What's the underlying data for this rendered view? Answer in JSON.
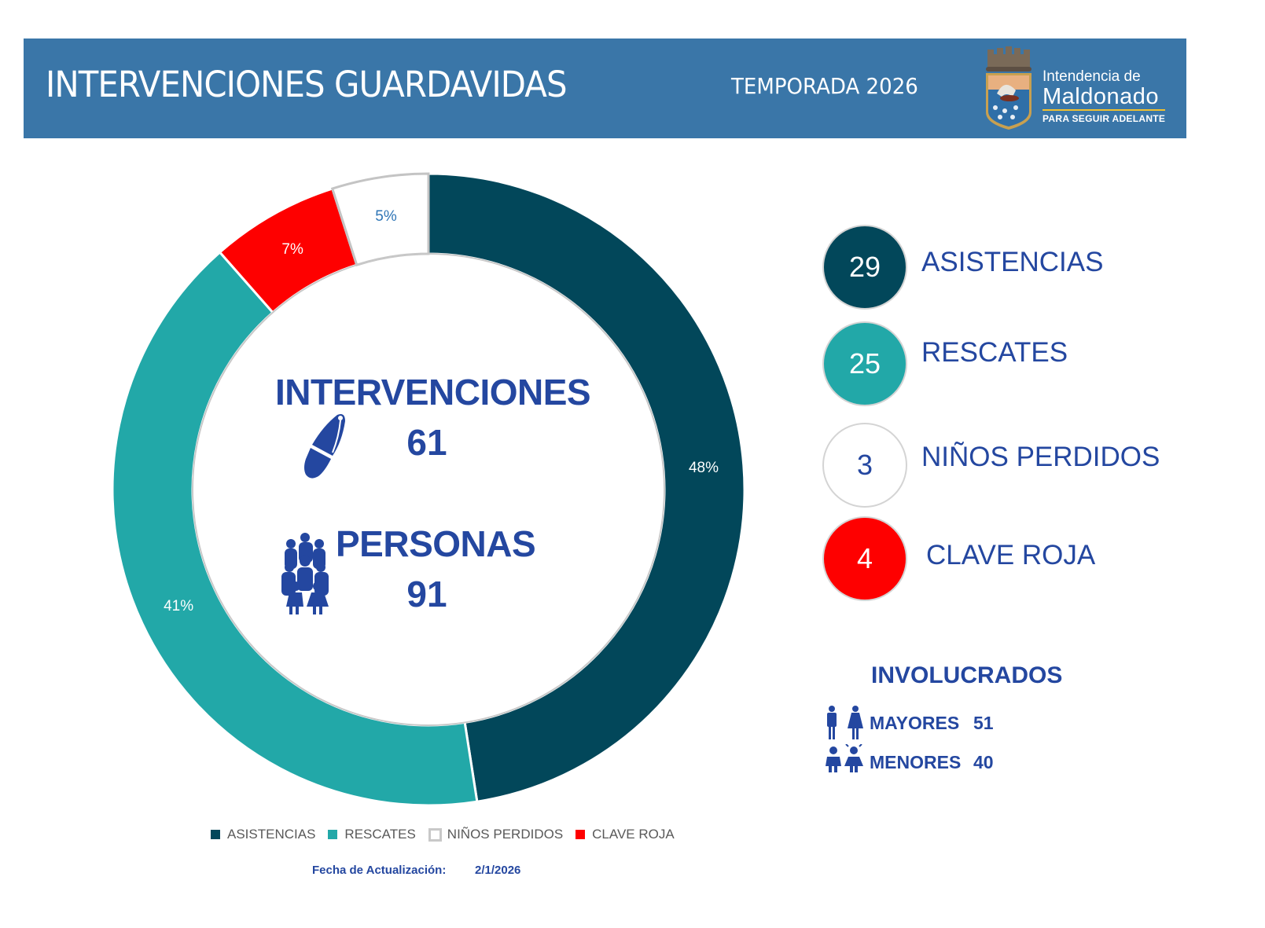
{
  "header": {
    "title": "INTERVENCIONES GUARDAVIDAS",
    "subtitle": "TEMPORADA 2026",
    "logo": {
      "line1": "Intendencia de",
      "line2": "Maldonado",
      "line3": "PARA SEGUIR ADELANTE",
      "icon": "coat-of-arms-icon"
    }
  },
  "colors": {
    "banner": "#3a76a8",
    "asistencias": "#02475a",
    "rescates": "#22a8a8",
    "ninos_perdidos": "#ffffff",
    "clave_roja": "#fe0000",
    "text_blue": "#2447a0"
  },
  "center": {
    "intervenciones_label": "INTERVENCIONES",
    "intervenciones_value": "61",
    "personas_label": "PERSONAS",
    "personas_value": "91"
  },
  "slice_labels": {
    "asistencias": "48%",
    "rescates": "41%",
    "clave_roja": "7%",
    "ninos_perdidos": "5%"
  },
  "stats": [
    {
      "value": "29",
      "label": "ASISTENCIAS"
    },
    {
      "value": "25",
      "label": "RESCATES"
    },
    {
      "value": "3",
      "label": "NIÑOS PERDIDOS"
    },
    {
      "value": "4",
      "label": "CLAVE ROJA"
    }
  ],
  "involucrados": {
    "title": "INVOLUCRADOS",
    "rows": [
      {
        "label": "MAYORES",
        "value": "51"
      },
      {
        "label": "MENORES",
        "value": "40"
      }
    ]
  },
  "legend": [
    {
      "label": "ASISTENCIAS"
    },
    {
      "label": "RESCATES"
    },
    {
      "label": "NIÑOS PERDIDOS"
    },
    {
      "label": "CLAVE ROJA"
    }
  ],
  "footer": {
    "label": "Fecha de Actualización:",
    "date": "2/1/2026"
  },
  "chart_data": {
    "type": "pie",
    "subtype": "donut",
    "title": "INTERVENCIONES GUARDAVIDAS - TEMPORADA 2026",
    "categories": [
      "ASISTENCIAS",
      "RESCATES",
      "CLAVE ROJA",
      "NIÑOS PERDIDOS"
    ],
    "values": [
      29,
      25,
      4,
      3
    ],
    "percent_labels": [
      "48%",
      "41%",
      "7%",
      "5%"
    ],
    "colors": [
      "#02475a",
      "#22a8a8",
      "#fe0000",
      "#ffffff"
    ],
    "center_text": {
      "INTERVENCIONES": 61,
      "PERSONAS": 91
    },
    "legend_position": "bottom",
    "legend_order": [
      "ASISTENCIAS",
      "RESCATES",
      "NIÑOS PERDIDOS",
      "CLAVE ROJA"
    ],
    "involucrados": {
      "MAYORES": 51,
      "MENORES": 40
    }
  }
}
